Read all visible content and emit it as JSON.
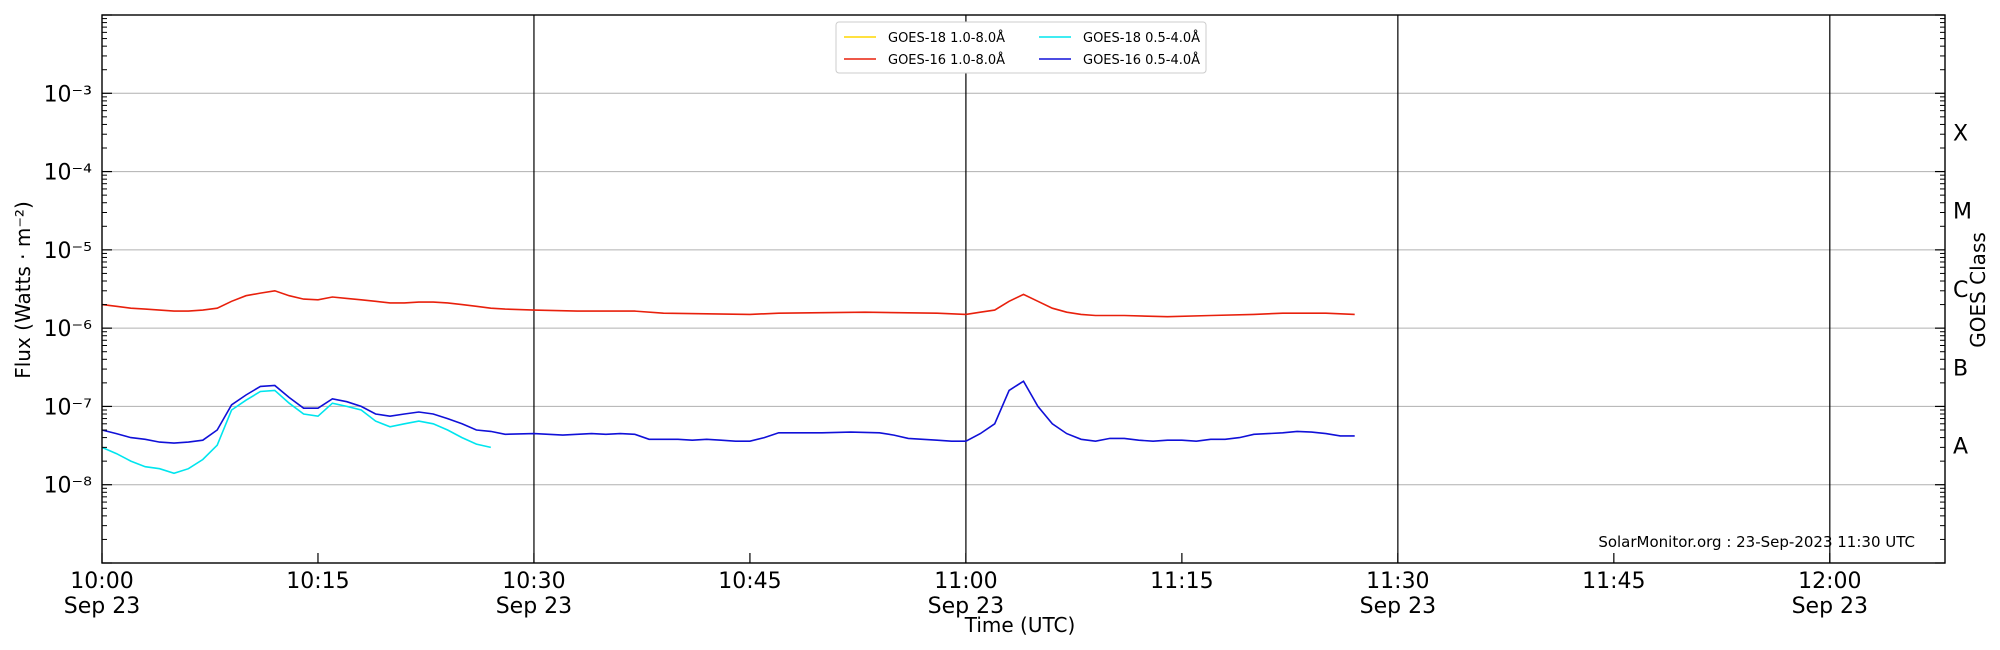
{
  "chart_data": {
    "type": "line",
    "xlabel": "Time (UTC)",
    "ylabel": "Flux (Watts · m⁻²)",
    "ylabel_right": "GOES Class",
    "yscale": "log",
    "ylim": [
      1e-09,
      0.01
    ],
    "y_ticks": [
      {
        "value": 1e-08,
        "label": "10⁻⁸"
      },
      {
        "value": 1e-07,
        "label": "10⁻⁷"
      },
      {
        "value": 1e-06,
        "label": "10⁻⁶"
      },
      {
        "value": 1e-05,
        "label": "10⁻⁵"
      },
      {
        "value": 0.0001,
        "label": "10⁻⁴"
      },
      {
        "value": 0.001,
        "label": "10⁻³"
      }
    ],
    "goes_classes": [
      {
        "label": "A",
        "value": 3.16e-08
      },
      {
        "label": "B",
        "value": 3.16e-07
      },
      {
        "label": "C",
        "value": 3.16e-06
      },
      {
        "label": "M",
        "value": 3.16e-05
      },
      {
        "label": "X",
        "value": 0.000316
      }
    ],
    "x_ticks": [
      {
        "time": "10:00",
        "date": "Sep 23"
      },
      {
        "time": "10:15",
        "date": ""
      },
      {
        "time": "10:30",
        "date": "Sep 23"
      },
      {
        "time": "10:45",
        "date": ""
      },
      {
        "time": "11:00",
        "date": "Sep 23"
      },
      {
        "time": "11:15",
        "date": ""
      },
      {
        "time": "11:30",
        "date": "Sep 23"
      },
      {
        "time": "11:45",
        "date": ""
      },
      {
        "time": "12:00",
        "date": "Sep 23"
      }
    ],
    "xlim": [
      "10:00",
      "12:08"
    ],
    "vertical_lines": [
      "10:30",
      "11:00",
      "11:30",
      "12:00"
    ],
    "grid": "horizontal",
    "legend_position": "top-center",
    "annotation": "SolarMonitor.org : 23-Sep-2023 11:30 UTC",
    "series": [
      {
        "name": "GOES-18 1.0-8.0Å",
        "color": "#ffd700",
        "data": []
      },
      {
        "name": "GOES-18 0.5-4.0Å",
        "color": "#00e5ee",
        "data": [
          [
            "10:00",
            3e-08
          ],
          [
            "10:01",
            2.5e-08
          ],
          [
            "10:02",
            2e-08
          ],
          [
            "10:03",
            1.7e-08
          ],
          [
            "10:04",
            1.6e-08
          ],
          [
            "10:05",
            1.4e-08
          ],
          [
            "10:06",
            1.6e-08
          ],
          [
            "10:07",
            2.1e-08
          ],
          [
            "10:08",
            3.2e-08
          ],
          [
            "10:09",
            9e-08
          ],
          [
            "10:10",
            1.2e-07
          ],
          [
            "10:11",
            1.55e-07
          ],
          [
            "10:12",
            1.6e-07
          ],
          [
            "10:13",
            1.1e-07
          ],
          [
            "10:14",
            8e-08
          ],
          [
            "10:15",
            7.5e-08
          ],
          [
            "10:16",
            1.1e-07
          ],
          [
            "10:17",
            1e-07
          ],
          [
            "10:18",
            9e-08
          ],
          [
            "10:19",
            6.5e-08
          ],
          [
            "10:20",
            5.5e-08
          ],
          [
            "10:21",
            6e-08
          ],
          [
            "10:22",
            6.5e-08
          ],
          [
            "10:23",
            6e-08
          ],
          [
            "10:24",
            5e-08
          ],
          [
            "10:25",
            4e-08
          ],
          [
            "10:26",
            3.3e-08
          ],
          [
            "10:27",
            3e-08
          ]
        ]
      },
      {
        "name": "GOES-16 1.0-8.0Å",
        "color": "#e8200c",
        "data": [
          [
            "10:00",
            2e-06
          ],
          [
            "10:01",
            1.9e-06
          ],
          [
            "10:02",
            1.8e-06
          ],
          [
            "10:03",
            1.75e-06
          ],
          [
            "10:04",
            1.7e-06
          ],
          [
            "10:05",
            1.65e-06
          ],
          [
            "10:06",
            1.65e-06
          ],
          [
            "10:07",
            1.7e-06
          ],
          [
            "10:08",
            1.8e-06
          ],
          [
            "10:09",
            2.2e-06
          ],
          [
            "10:10",
            2.6e-06
          ],
          [
            "10:11",
            2.8e-06
          ],
          [
            "10:12",
            3e-06
          ],
          [
            "10:13",
            2.6e-06
          ],
          [
            "10:14",
            2.35e-06
          ],
          [
            "10:15",
            2.3e-06
          ],
          [
            "10:16",
            2.5e-06
          ],
          [
            "10:17",
            2.4e-06
          ],
          [
            "10:18",
            2.3e-06
          ],
          [
            "10:19",
            2.2e-06
          ],
          [
            "10:20",
            2.1e-06
          ],
          [
            "10:21",
            2.1e-06
          ],
          [
            "10:22",
            2.15e-06
          ],
          [
            "10:23",
            2.15e-06
          ],
          [
            "10:24",
            2.1e-06
          ],
          [
            "10:25",
            2e-06
          ],
          [
            "10:26",
            1.9e-06
          ],
          [
            "10:27",
            1.8e-06
          ],
          [
            "10:28",
            1.75e-06
          ],
          [
            "10:30",
            1.7e-06
          ],
          [
            "10:33",
            1.65e-06
          ],
          [
            "10:36",
            1.65e-06
          ],
          [
            "10:37",
            1.65e-06
          ],
          [
            "10:39",
            1.55e-06
          ],
          [
            "10:45",
            1.5e-06
          ],
          [
            "10:47",
            1.55e-06
          ],
          [
            "10:53",
            1.6e-06
          ],
          [
            "10:58",
            1.55e-06
          ],
          [
            "11:00",
            1.5e-06
          ],
          [
            "11:01",
            1.6e-06
          ],
          [
            "11:02",
            1.7e-06
          ],
          [
            "11:03",
            2.2e-06
          ],
          [
            "11:04",
            2.7e-06
          ],
          [
            "11:05",
            2.2e-06
          ],
          [
            "11:06",
            1.8e-06
          ],
          [
            "11:07",
            1.6e-06
          ],
          [
            "11:08",
            1.5e-06
          ],
          [
            "11:09",
            1.45e-06
          ],
          [
            "11:11",
            1.45e-06
          ],
          [
            "11:14",
            1.4e-06
          ],
          [
            "11:17",
            1.45e-06
          ],
          [
            "11:20",
            1.5e-06
          ],
          [
            "11:22",
            1.55e-06
          ],
          [
            "11:25",
            1.55e-06
          ],
          [
            "11:27",
            1.5e-06
          ]
        ]
      },
      {
        "name": "GOES-16 0.5-4.0Å",
        "color": "#1010d8",
        "data": [
          [
            "10:00",
            5e-08
          ],
          [
            "10:01",
            4.5e-08
          ],
          [
            "10:02",
            4e-08
          ],
          [
            "10:03",
            3.8e-08
          ],
          [
            "10:04",
            3.5e-08
          ],
          [
            "10:05",
            3.4e-08
          ],
          [
            "10:06",
            3.5e-08
          ],
          [
            "10:07",
            3.7e-08
          ],
          [
            "10:08",
            5e-08
          ],
          [
            "10:09",
            1.05e-07
          ],
          [
            "10:10",
            1.4e-07
          ],
          [
            "10:11",
            1.8e-07
          ],
          [
            "10:12",
            1.85e-07
          ],
          [
            "10:13",
            1.3e-07
          ],
          [
            "10:14",
            9.5e-08
          ],
          [
            "10:15",
            9.5e-08
          ],
          [
            "10:16",
            1.25e-07
          ],
          [
            "10:17",
            1.15e-07
          ],
          [
            "10:18",
            1e-07
          ],
          [
            "10:19",
            8e-08
          ],
          [
            "10:20",
            7.5e-08
          ],
          [
            "10:21",
            8e-08
          ],
          [
            "10:22",
            8.5e-08
          ],
          [
            "10:23",
            8e-08
          ],
          [
            "10:24",
            7e-08
          ],
          [
            "10:25",
            6e-08
          ],
          [
            "10:26",
            5e-08
          ],
          [
            "10:27",
            4.8e-08
          ],
          [
            "10:28",
            4.4e-08
          ],
          [
            "10:30",
            4.5e-08
          ],
          [
            "10:31",
            4.4e-08
          ],
          [
            "10:32",
            4.3e-08
          ],
          [
            "10:33",
            4.4e-08
          ],
          [
            "10:34",
            4.5e-08
          ],
          [
            "10:35",
            4.4e-08
          ],
          [
            "10:36",
            4.5e-08
          ],
          [
            "10:37",
            4.4e-08
          ],
          [
            "10:38",
            3.8e-08
          ],
          [
            "10:40",
            3.8e-08
          ],
          [
            "10:41",
            3.7e-08
          ],
          [
            "10:42",
            3.8e-08
          ],
          [
            "10:43",
            3.7e-08
          ],
          [
            "10:44",
            3.6e-08
          ],
          [
            "10:45",
            3.6e-08
          ],
          [
            "10:46",
            4e-08
          ],
          [
            "10:47",
            4.6e-08
          ],
          [
            "10:50",
            4.6e-08
          ],
          [
            "10:52",
            4.7e-08
          ],
          [
            "10:54",
            4.6e-08
          ],
          [
            "10:55",
            4.3e-08
          ],
          [
            "10:56",
            3.9e-08
          ],
          [
            "10:57",
            3.8e-08
          ],
          [
            "10:58",
            3.7e-08
          ],
          [
            "10:59",
            3.6e-08
          ],
          [
            "11:00",
            3.6e-08
          ],
          [
            "11:01",
            4.5e-08
          ],
          [
            "11:02",
            6e-08
          ],
          [
            "11:03",
            1.6e-07
          ],
          [
            "11:04",
            2.1e-07
          ],
          [
            "11:05",
            1e-07
          ],
          [
            "11:06",
            6e-08
          ],
          [
            "11:07",
            4.5e-08
          ],
          [
            "11:08",
            3.8e-08
          ],
          [
            "11:09",
            3.6e-08
          ],
          [
            "11:10",
            3.9e-08
          ],
          [
            "11:11",
            3.9e-08
          ],
          [
            "11:12",
            3.7e-08
          ],
          [
            "11:13",
            3.6e-08
          ],
          [
            "11:14",
            3.7e-08
          ],
          [
            "11:15",
            3.7e-08
          ],
          [
            "11:16",
            3.6e-08
          ],
          [
            "11:17",
            3.8e-08
          ],
          [
            "11:18",
            3.8e-08
          ],
          [
            "11:19",
            4e-08
          ],
          [
            "11:20",
            4.4e-08
          ],
          [
            "11:21",
            4.5e-08
          ],
          [
            "11:22",
            4.6e-08
          ],
          [
            "11:23",
            4.8e-08
          ],
          [
            "11:24",
            4.7e-08
          ],
          [
            "11:25",
            4.5e-08
          ],
          [
            "11:26",
            4.2e-08
          ],
          [
            "11:27",
            4.2e-08
          ]
        ]
      }
    ],
    "legend_order": [
      0,
      1,
      2,
      3
    ]
  }
}
